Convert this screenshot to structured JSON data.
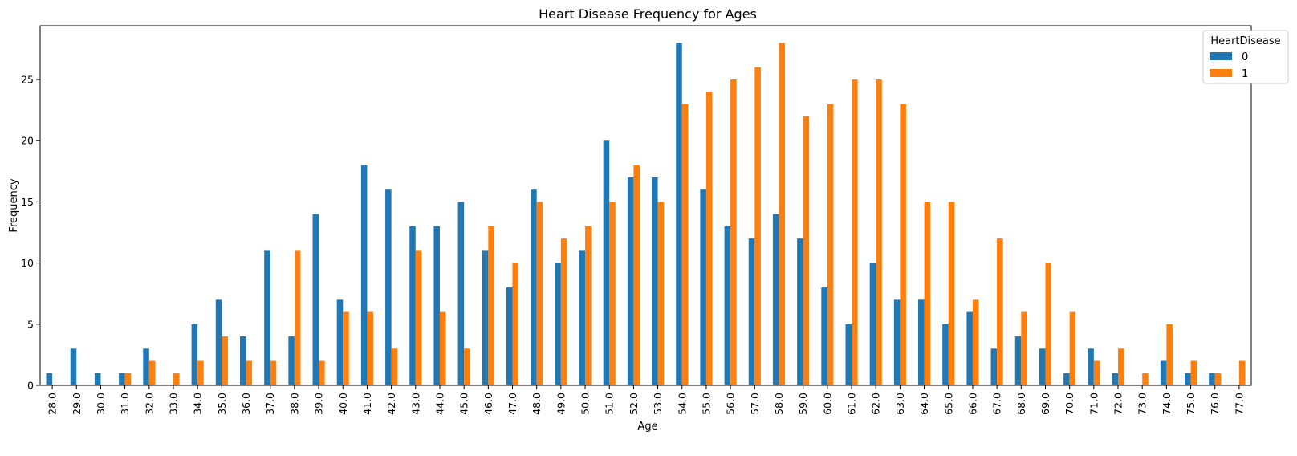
{
  "chart_data": {
    "type": "bar",
    "title": "Heart Disease Frequency for Ages",
    "xlabel": "Age",
    "ylabel": "Frequency",
    "ylim": [
      0,
      29.4
    ],
    "yticks": [
      0,
      5,
      10,
      15,
      20,
      25
    ],
    "grid": false,
    "legend": {
      "title": "HeartDisease",
      "placement": "top-right"
    },
    "categories": [
      "28.0",
      "29.0",
      "30.0",
      "31.0",
      "32.0",
      "33.0",
      "34.0",
      "35.0",
      "36.0",
      "37.0",
      "38.0",
      "39.0",
      "40.0",
      "41.0",
      "42.0",
      "43.0",
      "44.0",
      "45.0",
      "46.0",
      "47.0",
      "48.0",
      "49.0",
      "50.0",
      "51.0",
      "52.0",
      "53.0",
      "54.0",
      "55.0",
      "56.0",
      "57.0",
      "58.0",
      "59.0",
      "60.0",
      "61.0",
      "62.0",
      "63.0",
      "64.0",
      "65.0",
      "66.0",
      "67.0",
      "68.0",
      "69.0",
      "70.0",
      "71.0",
      "72.0",
      "73.0",
      "74.0",
      "75.0",
      "76.0",
      "77.0"
    ],
    "series": [
      {
        "name": "0",
        "color": "#1f77b4",
        "values": [
          1,
          3,
          1,
          1,
          3,
          0,
          5,
          7,
          4,
          11,
          4,
          14,
          7,
          18,
          16,
          13,
          13,
          15,
          11,
          8,
          16,
          10,
          11,
          20,
          17,
          17,
          28,
          16,
          13,
          12,
          14,
          12,
          8,
          5,
          10,
          7,
          7,
          5,
          6,
          3,
          4,
          3,
          1,
          3,
          1,
          0,
          2,
          1,
          1,
          0
        ]
      },
      {
        "name": "1",
        "color": "#ff7f0e",
        "values": [
          0,
          0,
          0,
          1,
          2,
          1,
          2,
          4,
          2,
          2,
          11,
          2,
          6,
          6,
          3,
          11,
          6,
          3,
          13,
          10,
          15,
          12,
          13,
          15,
          18,
          15,
          23,
          24,
          25,
          26,
          28,
          22,
          23,
          25,
          25,
          23,
          15,
          15,
          7,
          12,
          6,
          10,
          6,
          2,
          3,
          1,
          5,
          2,
          1,
          2
        ]
      }
    ]
  }
}
